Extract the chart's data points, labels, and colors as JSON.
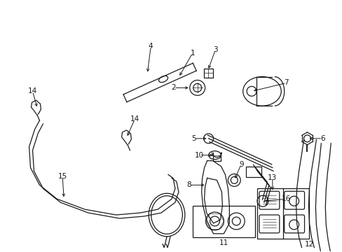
{
  "bg_color": "#ffffff",
  "line_color": "#1a1a1a",
  "fig_width": 4.89,
  "fig_height": 3.6,
  "dpi": 100,
  "label_fs": 7.5,
  "lw": 0.9
}
